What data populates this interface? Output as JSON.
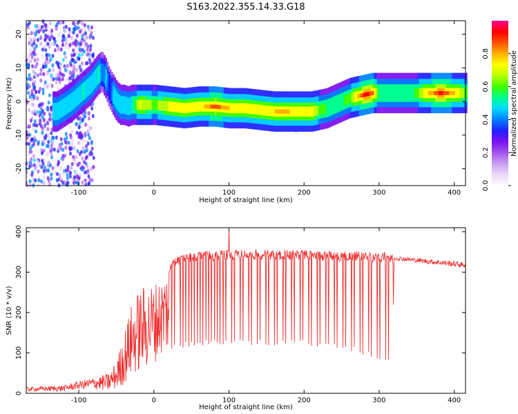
{
  "title": "S163.2022.355.14.33.G18",
  "colors": {
    "snr_line": "#f03030",
    "colormap": [
      "#ffffff",
      "#e9d8f6",
      "#c9a0f0",
      "#a055ee",
      "#7a10f0",
      "#2020ff",
      "#0080ff",
      "#00d8ff",
      "#00ff90",
      "#40ff00",
      "#b8ff00",
      "#ffff00",
      "#ffb000",
      "#ff5000",
      "#ff0000",
      "#ff0090"
    ]
  },
  "chart_data": [
    {
      "type": "heatmap",
      "xlabel": "Height of straight line (km)",
      "ylabel": "Frequency (Hz)",
      "xlim": [
        -170,
        415
      ],
      "ylim": [
        -25,
        24
      ],
      "xticks": [
        -100,
        0,
        100,
        200,
        300,
        400
      ],
      "yticks": [
        -20,
        -10,
        0,
        10,
        20
      ],
      "colorbar": {
        "label": "Normalized spectral amplitude",
        "range": [
          0,
          1
        ],
        "ticks": [
          "0.0",
          "0.2",
          "0.4",
          "0.6",
          "0.8"
        ],
        "tick_values": [
          0,
          0.2,
          0.4,
          0.6,
          0.8
        ]
      },
      "ridge": {
        "x": [
          -130,
          -110,
          -95,
          -85,
          -75,
          -70,
          -65,
          -60,
          -55,
          -50,
          -45,
          -40,
          -35,
          -30,
          -20,
          0,
          20,
          40,
          60,
          80,
          100,
          120,
          140,
          160,
          180,
          200,
          210,
          220,
          230,
          240,
          250,
          260,
          270,
          280,
          290,
          300,
          320,
          340,
          360,
          380,
          400,
          415
        ],
        "freq": [
          -3,
          0,
          3,
          5,
          8,
          9,
          7,
          4,
          2,
          0,
          -1,
          -1,
          -1.5,
          -1,
          -1,
          -1,
          -1.5,
          -2,
          -1.5,
          -1.5,
          -2,
          -2,
          -2.5,
          -3,
          -3,
          -3,
          -3,
          -2.5,
          -2,
          -1,
          0,
          1,
          1.5,
          2,
          2.5,
          2.5,
          2.5,
          2.5,
          2.5,
          2.5,
          2.5,
          2.5
        ],
        "amplitude": [
          0.45,
          0.45,
          0.5,
          0.45,
          0.5,
          0.4,
          0.45,
          0.35,
          0.45,
          0.45,
          0.45,
          0.5,
          0.45,
          0.5,
          0.7,
          0.6,
          0.7,
          0.75,
          0.7,
          0.85,
          0.75,
          0.7,
          0.7,
          0.75,
          0.75,
          0.7,
          0.7,
          0.6,
          0.55,
          0.55,
          0.55,
          0.6,
          0.75,
          0.9,
          0.85,
          0.5,
          0.5,
          0.5,
          0.7,
          0.9,
          0.75,
          0.6
        ]
      },
      "noise_region_x": [
        -170,
        -80
      ]
    },
    {
      "type": "line",
      "xlabel": "Height of straight line (km)",
      "ylabel": "SNR (10 * v/v)",
      "xlim": [
        -170,
        415
      ],
      "ylim": [
        0,
        410
      ],
      "xticks": [
        -100,
        0,
        100,
        200,
        300,
        400
      ],
      "yticks": [
        0,
        100,
        200,
        300,
        400
      ],
      "envelope": {
        "x": [
          -170,
          -120,
          -100,
          -80,
          -60,
          -50,
          -40,
          -30,
          -20,
          -10,
          0,
          10,
          20,
          30,
          50,
          100,
          150,
          200,
          250,
          300,
          318,
          320,
          415
        ],
        "upper": [
          15,
          20,
          30,
          40,
          50,
          80,
          150,
          220,
          260,
          270,
          275,
          290,
          320,
          340,
          350,
          355,
          355,
          355,
          352,
          350,
          348,
          340,
          325
        ],
        "lower": [
          5,
          5,
          10,
          10,
          5,
          10,
          20,
          40,
          50,
          60,
          75,
          90,
          100,
          110,
          115,
          118,
          118,
          118,
          108,
          85,
          75,
          330,
          310
        ]
      },
      "spike": {
        "x": 100,
        "y": 410
      }
    }
  ]
}
